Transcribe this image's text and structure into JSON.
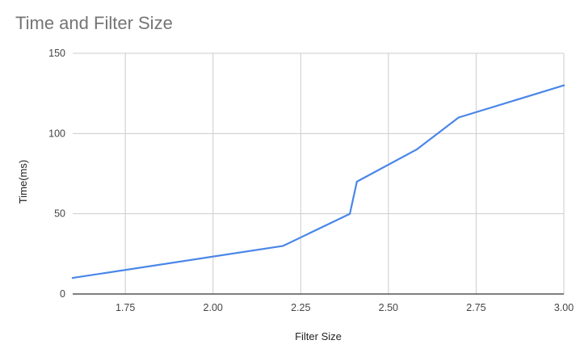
{
  "chart_data": {
    "type": "line",
    "title": "Time and Filter Size",
    "xlabel": "Filter Size",
    "ylabel": "Time(ms)",
    "xlim": [
      1.6,
      3.0
    ],
    "ylim": [
      0,
      150
    ],
    "x_ticks": [
      1.75,
      2.0,
      2.25,
      2.5,
      2.75,
      3.0
    ],
    "x_tick_labels": [
      "1.75",
      "2.00",
      "2.25",
      "2.50",
      "2.75",
      "3.00"
    ],
    "y_ticks": [
      0,
      50,
      100,
      150
    ],
    "y_tick_labels": [
      "0",
      "50",
      "100",
      "150"
    ],
    "grid": true,
    "legend": "none",
    "series": [
      {
        "color": "#4a86e8",
        "points": [
          {
            "x": 1.6,
            "y": 10
          },
          {
            "x": 2.2,
            "y": 30
          },
          {
            "x": 2.39,
            "y": 50
          },
          {
            "x": 2.41,
            "y": 70
          },
          {
            "x": 2.58,
            "y": 90
          },
          {
            "x": 2.7,
            "y": 110
          },
          {
            "x": 3.0,
            "y": 130
          }
        ]
      }
    ]
  }
}
